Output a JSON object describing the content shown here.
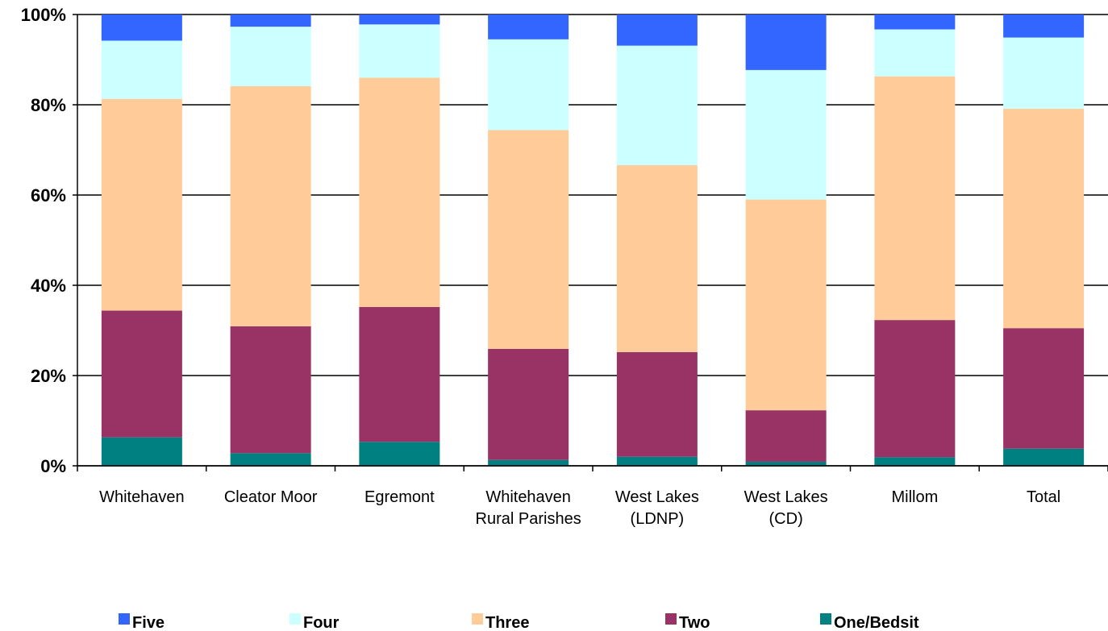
{
  "chart_data": {
    "type": "bar",
    "stacked": true,
    "percent": true,
    "categories": [
      [
        "Whitehaven"
      ],
      [
        "Cleator Moor"
      ],
      [
        "Egremont"
      ],
      [
        "Whitehaven",
        "Rural Parishes"
      ],
      [
        "West Lakes",
        "(LDNP)"
      ],
      [
        "West Lakes",
        "(CD)"
      ],
      [
        "Millom"
      ],
      [
        "Total"
      ]
    ],
    "series": [
      {
        "name": "One/Bedsit",
        "color": "#008080",
        "values": [
          6.3,
          2.8,
          5.3,
          1.3,
          2.0,
          0.9,
          1.9,
          3.8
        ]
      },
      {
        "name": "Two",
        "color": "#993366",
        "values": [
          28.1,
          28.1,
          29.9,
          24.6,
          23.2,
          11.4,
          30.4,
          26.7
        ]
      },
      {
        "name": "Three",
        "color": "#FFCC99",
        "values": [
          46.9,
          53.2,
          50.8,
          48.5,
          41.4,
          46.7,
          54.0,
          48.6
        ]
      },
      {
        "name": "Four",
        "color": "#CCFFFF",
        "values": [
          12.9,
          13.2,
          11.8,
          20.1,
          26.5,
          28.7,
          10.4,
          15.8
        ]
      },
      {
        "name": "Five",
        "color": "#3366FF",
        "values": [
          5.8,
          2.7,
          2.2,
          5.5,
          6.9,
          12.3,
          3.3,
          5.1
        ]
      }
    ],
    "ylim": [
      0,
      100
    ],
    "yticks": [
      "0%",
      "20%",
      "40%",
      "60%",
      "80%",
      "100%"
    ],
    "legend_order": [
      "Five",
      "Four",
      "Three",
      "Two",
      "One/Bedsit"
    ],
    "legend_position": "bottom",
    "grid": true
  }
}
